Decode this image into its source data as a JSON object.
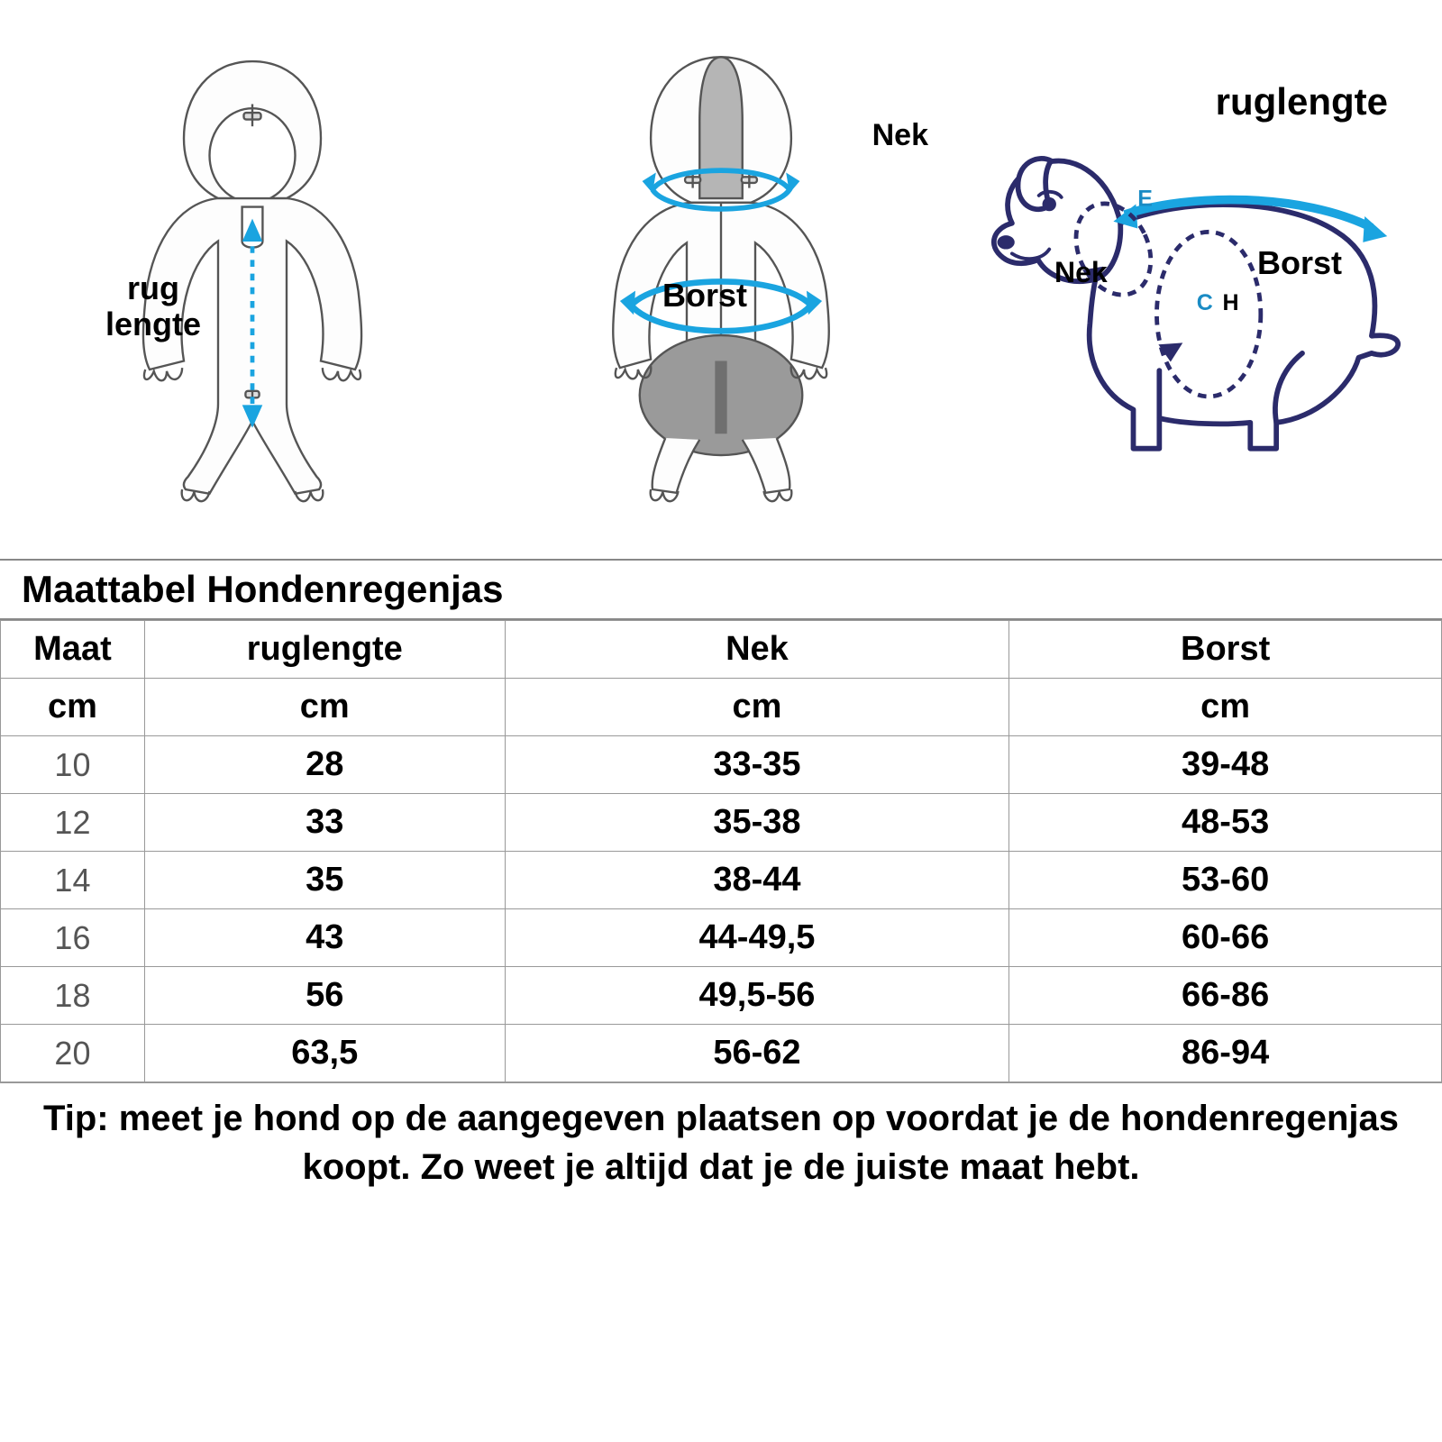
{
  "diagram": {
    "front": {
      "label": "rug\nlengte"
    },
    "back": {
      "nek": "Nek",
      "borst": "Borst"
    },
    "dog": {
      "ruglengte": "ruglengte",
      "nek": "Nek",
      "borst": "Borst",
      "e": "E",
      "c": "C",
      "h": "H"
    }
  },
  "table": {
    "title": "Maattabel Hondenregenjas",
    "columns": [
      "Maat",
      "ruglengte",
      "Nek",
      "Borst"
    ],
    "units": [
      "cm",
      "cm",
      "cm",
      "cm"
    ],
    "rows": [
      [
        "10",
        "28",
        "33-35",
        "39-48"
      ],
      [
        "12",
        "33",
        "35-38",
        "48-53"
      ],
      [
        "14",
        "35",
        "38-44",
        "53-60"
      ],
      [
        "16",
        "43",
        "44-49,5",
        "60-66"
      ],
      [
        "18",
        "56",
        "49,5-56",
        "66-86"
      ],
      [
        "20",
        "63,5",
        "56-62",
        "86-94"
      ]
    ]
  },
  "tip": "Tip: meet je hond op de aangegeven plaatsen op voordat je de hondenregenjas koopt. Zo weet je altijd dat je de juiste maat hebt.",
  "colors": {
    "arrow": "#1aa4e0",
    "arrow_dark": "#3a3a8a",
    "outline": "#555555",
    "fill_grey": "#b0b0b0",
    "fill_light": "#f8f8f8"
  }
}
